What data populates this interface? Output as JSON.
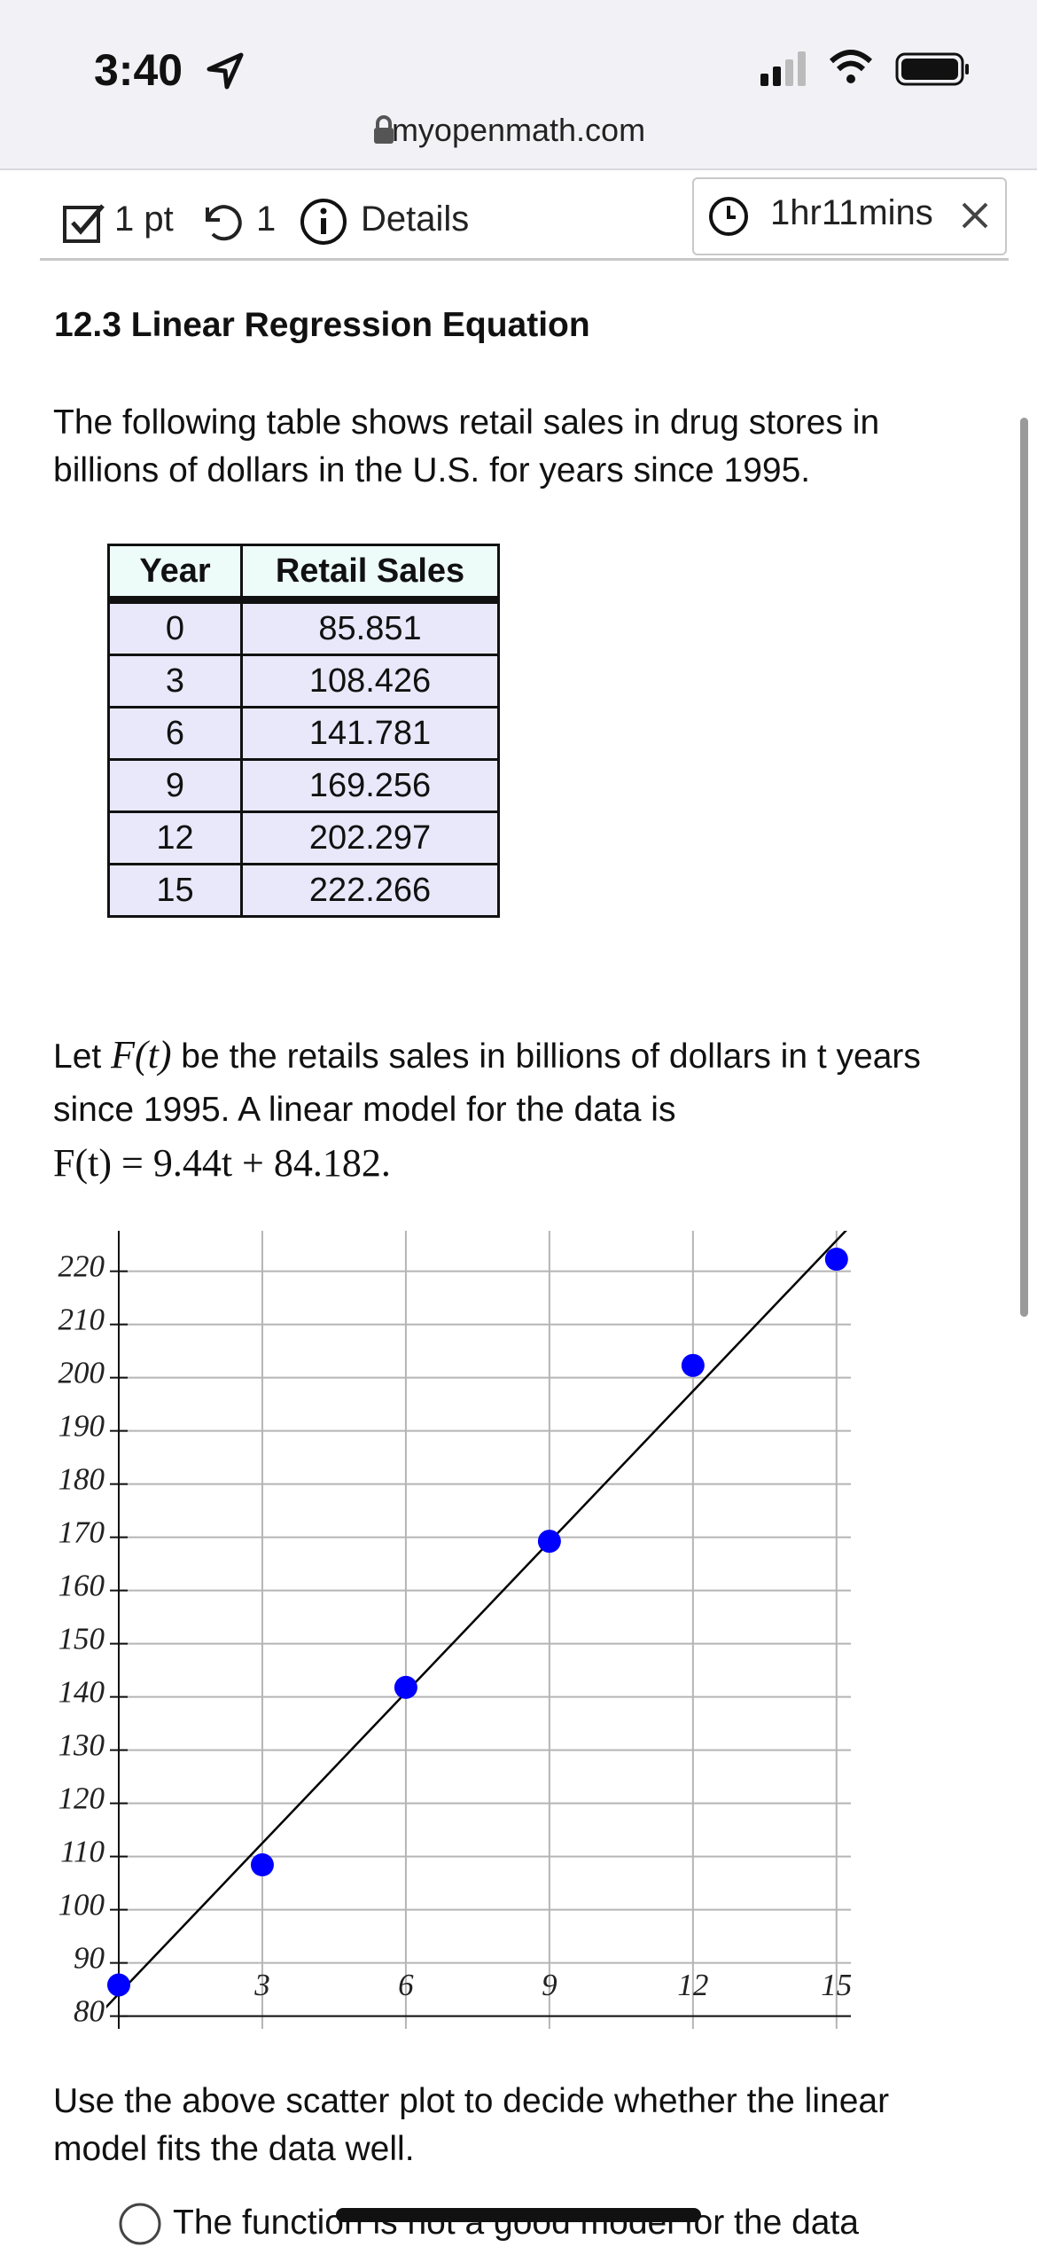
{
  "status_bar": {
    "time": "3:40"
  },
  "address_bar": {
    "url": "myopenmath.com"
  },
  "question_header": {
    "points": "1 pt",
    "attempts": "1",
    "details": "Details",
    "timer": "1hr11mins"
  },
  "section_title": "12.3 Linear Regression Equation",
  "intro": "The following table shows retail sales in drug stores in billions of dollars in the U.S. for years since 1995.",
  "table": {
    "header": [
      "Year",
      "Retail Sales"
    ],
    "rows": [
      [
        "0",
        "85.851"
      ],
      [
        "3",
        "108.426"
      ],
      [
        "6",
        "141.781"
      ],
      [
        "9",
        "169.256"
      ],
      [
        "12",
        "202.297"
      ],
      [
        "15",
        "222.266"
      ]
    ]
  },
  "model_text": {
    "lead": "Let ",
    "symbol": "F(t)",
    "body": " be the retails sales in billions of dollars in t years since 1995. A linear model for the data is",
    "formula": "F(t) = 9.44t + 84.182."
  },
  "chart_data": {
    "type": "scatter",
    "x": [
      0,
      3,
      6,
      9,
      12,
      15
    ],
    "values": [
      85.851,
      108.426,
      141.781,
      169.256,
      202.297,
      222.266
    ],
    "color": "#0000ff",
    "fit_line": {
      "slope": 9.44,
      "intercept": 84.182,
      "color": "#000000"
    },
    "xlim": [
      0,
      15.3
    ],
    "ylim": [
      77.6,
      227.6
    ],
    "xticks": [
      3,
      6,
      9,
      12,
      15
    ],
    "yticks": [
      80,
      90,
      100,
      110,
      120,
      130,
      140,
      150,
      160,
      170,
      180,
      190,
      200,
      210,
      220
    ],
    "grid": true
  },
  "prompt": "Use the above scatter plot to decide whether the linear model fits the data well.",
  "options": [
    "The function is not a good model for the data"
  ]
}
